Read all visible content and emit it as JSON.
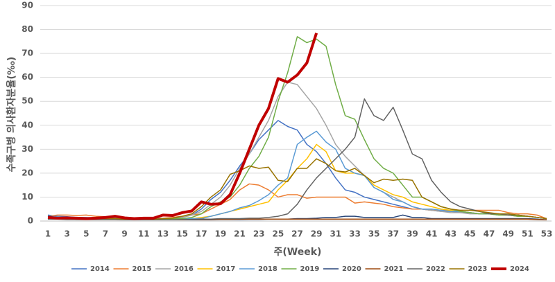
{
  "chart_data": {
    "type": "line",
    "x_label": "주(Week)",
    "y_label": "수족구병 의사환자분율(‰)",
    "x": [
      1,
      2,
      3,
      4,
      5,
      6,
      7,
      8,
      9,
      10,
      11,
      12,
      13,
      14,
      15,
      16,
      17,
      18,
      19,
      20,
      21,
      22,
      23,
      24,
      25,
      26,
      27,
      28,
      29,
      30,
      31,
      32,
      33,
      34,
      35,
      36,
      37,
      38,
      39,
      40,
      41,
      42,
      43,
      44,
      45,
      46,
      47,
      48,
      49,
      50,
      51,
      52,
      53
    ],
    "xlim": [
      1,
      53
    ],
    "xticks": [
      1,
      3,
      5,
      7,
      9,
      11,
      13,
      15,
      17,
      19,
      21,
      23,
      25,
      27,
      29,
      31,
      33,
      35,
      37,
      39,
      41,
      43,
      45,
      47,
      49,
      51,
      53
    ],
    "ylim": [
      0,
      90
    ],
    "yticks": [
      0,
      10,
      20,
      30,
      40,
      50,
      60,
      70,
      80,
      90
    ],
    "grid": true,
    "legend": "bottom",
    "series": [
      {
        "name": "2014",
        "color": "#4472c4",
        "line_width": 1.5,
        "values": [
          2.5,
          2,
          1.8,
          1.5,
          1.5,
          1.2,
          1.2,
          1.5,
          1,
          1,
          1,
          1,
          1,
          1.2,
          1.5,
          2.5,
          5,
          9,
          12,
          17,
          23,
          28,
          34,
          38,
          42,
          39.5,
          38,
          32,
          29,
          24,
          18,
          13,
          12,
          10,
          9,
          8,
          7,
          6,
          5,
          5,
          4.5,
          4,
          4,
          3.5,
          3.5,
          3,
          3,
          3,
          2.5,
          2.5,
          2,
          1.5,
          1
        ]
      },
      {
        "name": "2015",
        "color": "#ed7d31",
        "line_width": 1.5,
        "values": [
          2,
          2.5,
          2.5,
          2.3,
          2.5,
          2,
          1.8,
          1.5,
          1.2,
          1.2,
          1.2,
          1,
          1.2,
          1.5,
          2,
          2.5,
          3,
          5,
          7,
          9,
          13,
          15.5,
          15,
          13,
          10,
          11,
          11,
          9.5,
          10,
          10,
          10,
          10,
          7.5,
          8,
          7.5,
          7,
          6,
          5.5,
          5,
          5,
          4.5,
          4.5,
          4.5,
          4.5,
          4.5,
          4.5,
          4.5,
          4.5,
          3.5,
          3,
          3,
          2.5,
          1
        ]
      },
      {
        "name": "2016",
        "color": "#a5a5a5",
        "line_width": 1.5,
        "values": [
          2,
          1.8,
          1.5,
          1.5,
          1.2,
          1.2,
          1.2,
          1.2,
          1,
          1,
          1,
          1,
          1,
          1.2,
          1.5,
          2.5,
          4,
          7,
          10,
          15,
          22,
          28,
          35,
          42,
          52,
          58,
          57,
          52,
          47,
          40,
          32,
          27,
          23,
          19,
          14,
          12,
          10,
          8,
          6,
          5,
          4.5,
          4,
          3.5,
          3.5,
          3,
          3,
          3,
          2.5,
          2.5,
          2,
          2,
          1.5,
          1
        ]
      },
      {
        "name": "2017",
        "color": "#ffc000",
        "line_width": 1.5,
        "values": [
          1.5,
          1.2,
          1.2,
          1,
          1,
          1,
          1,
          1,
          0.8,
          0.8,
          0.8,
          0.8,
          0.8,
          0.8,
          1,
          1,
          1.5,
          2,
          3,
          4,
          5,
          6,
          7,
          8,
          13,
          17,
          22,
          26,
          32,
          29,
          21,
          20,
          20,
          19,
          15,
          13,
          11,
          10,
          8,
          7,
          6,
          5,
          4.5,
          4,
          3.5,
          3,
          3,
          2.5,
          2.5,
          2,
          2,
          1.5,
          1
        ]
      },
      {
        "name": "2018",
        "color": "#5b9bd5",
        "line_width": 1.5,
        "values": [
          2,
          1.8,
          1.5,
          1.5,
          1.2,
          1.2,
          1.2,
          1.2,
          1,
          1,
          1,
          1,
          1,
          1,
          1,
          1,
          1,
          2,
          3,
          4,
          5.5,
          6.5,
          8.5,
          11,
          15,
          18,
          32,
          35,
          37.5,
          33,
          30,
          22,
          20,
          19,
          14,
          12,
          9,
          8,
          6,
          5,
          5,
          4.5,
          4,
          4,
          3.5,
          3,
          3,
          3,
          2.5,
          2.5,
          2,
          1.5,
          1
        ]
      },
      {
        "name": "2019",
        "color": "#70ad47",
        "line_width": 1.5,
        "values": [
          1.5,
          1.2,
          1.2,
          1,
          1,
          1,
          1,
          1,
          0.8,
          0.8,
          0.8,
          0.8,
          0.8,
          1,
          1,
          1.5,
          3,
          6,
          8,
          10,
          15,
          22,
          27,
          35,
          50,
          62,
          77,
          74.5,
          76,
          73,
          57,
          44,
          42.5,
          34,
          26,
          22,
          20,
          15,
          10,
          10,
          8,
          6,
          5,
          4,
          3.5,
          3,
          3,
          2.5,
          2.5,
          2,
          2,
          1.5,
          1
        ]
      },
      {
        "name": "2020",
        "color": "#264478",
        "line_width": 1.5,
        "values": [
          2,
          1.5,
          1.2,
          1,
          0.8,
          0.8,
          0.8,
          0.8,
          0.6,
          0.6,
          0.5,
          0.5,
          0.5,
          0.5,
          0.5,
          0.5,
          0.5,
          0.5,
          0.6,
          0.6,
          0.6,
          0.7,
          0.7,
          0.8,
          0.8,
          0.8,
          1,
          1,
          1.2,
          1.5,
          1.5,
          2,
          2,
          1.5,
          1.5,
          1.5,
          1.5,
          2.5,
          1.5,
          1.5,
          1,
          1,
          1,
          1,
          1,
          1,
          1,
          1,
          1,
          1,
          1,
          0.8,
          0.5
        ]
      },
      {
        "name": "2021",
        "color": "#9e480e",
        "line_width": 1.5,
        "values": [
          1,
          0.8,
          0.8,
          0.6,
          0.6,
          0.6,
          0.6,
          0.6,
          0.5,
          0.5,
          0.5,
          0.5,
          0.5,
          0.5,
          0.5,
          0.6,
          0.6,
          0.6,
          0.7,
          0.7,
          0.8,
          0.8,
          0.8,
          0.8,
          0.8,
          0.8,
          0.8,
          0.8,
          0.8,
          0.8,
          0.8,
          0.8,
          0.8,
          0.8,
          0.8,
          0.8,
          0.8,
          0.8,
          0.8,
          0.8,
          0.8,
          0.8,
          0.8,
          0.8,
          0.8,
          0.8,
          0.8,
          0.8,
          0.8,
          0.8,
          0.8,
          0.6,
          0.5
        ]
      },
      {
        "name": "2022",
        "color": "#636363",
        "line_width": 1.5,
        "values": [
          0.8,
          0.8,
          0.6,
          0.6,
          0.6,
          0.6,
          0.6,
          0.6,
          0.5,
          0.5,
          0.5,
          0.5,
          0.5,
          0.5,
          0.6,
          0.6,
          0.8,
          0.8,
          1,
          1,
          1,
          1.2,
          1.2,
          1.5,
          2,
          3,
          7,
          13,
          18,
          22,
          26,
          30,
          35,
          51,
          44,
          42,
          47.5,
          38,
          28,
          26,
          17,
          12,
          8,
          6,
          5,
          4,
          3,
          3,
          2.5,
          2.5,
          2,
          1.5,
          1
        ]
      },
      {
        "name": "2023",
        "color": "#997300",
        "line_width": 1.5,
        "values": [
          1.5,
          1.2,
          1.2,
          1,
          1,
          1,
          1,
          1,
          0.8,
          0.8,
          0.8,
          0.8,
          1,
          1.2,
          2,
          3,
          6,
          10,
          13,
          19.5,
          21,
          23,
          22,
          22.5,
          17,
          16.5,
          22,
          22,
          26,
          24,
          21,
          20.5,
          22,
          19,
          16,
          17.5,
          17,
          17.5,
          17,
          10,
          8,
          6,
          5,
          4.5,
          4.5,
          4,
          3.5,
          3,
          3,
          2.5,
          2,
          1.5,
          1
        ]
      },
      {
        "name": "2024",
        "color": "#c00000",
        "line_width": 4,
        "values": [
          1.5,
          1.2,
          1.3,
          1.2,
          1,
          1.2,
          1.5,
          2,
          1.3,
          1,
          1.2,
          1.2,
          2.5,
          2.3,
          3.5,
          4.2,
          8,
          7,
          7.2,
          11,
          20,
          30,
          40,
          47,
          59.5,
          58,
          61,
          66,
          78.5,
          null,
          null,
          null,
          null,
          null,
          null,
          null,
          null,
          null,
          null,
          null,
          null,
          null,
          null,
          null,
          null,
          null,
          null,
          null,
          null,
          null,
          null,
          null,
          null
        ]
      }
    ]
  }
}
